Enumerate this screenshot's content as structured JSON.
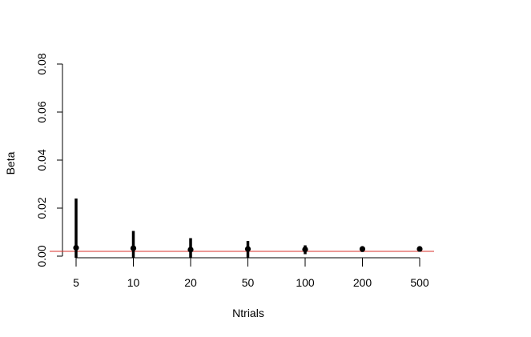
{
  "chart_data": {
    "type": "scatter",
    "title": "",
    "xlabel": "Ntrials",
    "ylabel": "Beta",
    "categories": [
      "5",
      "10",
      "20",
      "50",
      "100",
      "200",
      "500"
    ],
    "yticks": [
      "0.00",
      "0.02",
      "0.04",
      "0.06",
      "0.08"
    ],
    "ylim": [
      0,
      0.08
    ],
    "points": [
      0.0035,
      0.0033,
      0.0027,
      0.003,
      0.0028,
      0.003,
      0.003
    ],
    "error_bars": [
      {
        "low": 0.0,
        "high": 0.024
      },
      {
        "low": 0.0,
        "high": 0.0105
      },
      {
        "low": 0.0,
        "high": 0.0075
      },
      {
        "low": 0.0,
        "high": 0.0063
      },
      {
        "low": 0.0015,
        "high": 0.0045
      },
      {
        "low": 0.0024,
        "high": 0.0035
      },
      {
        "low": 0.0025,
        "high": 0.0035
      }
    ],
    "reference_line": {
      "value": 0.002,
      "color": "#d9322b"
    },
    "grid": false,
    "point_color": "#000000",
    "error_bar_color": "#000000"
  }
}
